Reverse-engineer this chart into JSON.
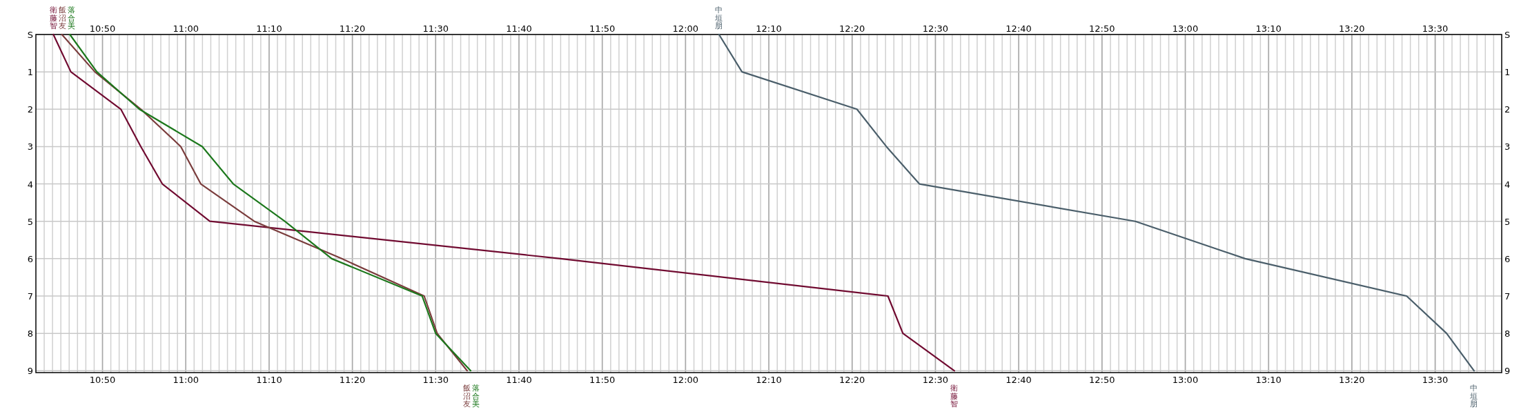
{
  "chart_data": {
    "type": "line",
    "grid": true,
    "marker": "none",
    "line_style": "solid",
    "xlim": [
      10.7,
      13.6333
    ],
    "x2lim": [
      10.7,
      13.6333
    ],
    "xticks": [
      {
        "value": 10.8333,
        "label": "10:50"
      },
      {
        "value": 11.0,
        "label": "11:00"
      },
      {
        "value": 11.1667,
        "label": "11:10"
      },
      {
        "value": 11.3333,
        "label": "11:20"
      },
      {
        "value": 11.5,
        "label": "11:30"
      },
      {
        "value": 11.6667,
        "label": "11:40"
      },
      {
        "value": 11.8333,
        "label": "11:50"
      },
      {
        "value": 12.0,
        "label": "12:00"
      },
      {
        "value": 12.1667,
        "label": "12:10"
      },
      {
        "value": 12.3333,
        "label": "12:20"
      },
      {
        "value": 12.5,
        "label": "12:30"
      },
      {
        "value": 12.6667,
        "label": "12:40"
      },
      {
        "value": 12.8333,
        "label": "12:50"
      },
      {
        "value": 13.0,
        "label": "13:00"
      },
      {
        "value": 13.1667,
        "label": "13:10"
      },
      {
        "value": 13.3333,
        "label": "13:20"
      },
      {
        "value": 13.5,
        "label": "13:30"
      }
    ],
    "x2ticks": [
      {
        "value": 10.8333,
        "label": "10:50"
      },
      {
        "value": 11.0,
        "label": "11:00"
      },
      {
        "value": 11.1667,
        "label": "11:10"
      },
      {
        "value": 11.3333,
        "label": "11:20"
      },
      {
        "value": 11.5,
        "label": "11:30"
      },
      {
        "value": 11.6667,
        "label": "11:40"
      },
      {
        "value": 11.8333,
        "label": "11:50"
      },
      {
        "value": 12.0,
        "label": "12:00"
      },
      {
        "value": 12.1667,
        "label": "12:10"
      },
      {
        "value": 12.3333,
        "label": "12:20"
      },
      {
        "value": 12.5,
        "label": "12:30"
      },
      {
        "value": 12.6667,
        "label": "12:40"
      },
      {
        "value": 12.8333,
        "label": "12:50"
      },
      {
        "value": 13.0,
        "label": "13:00"
      },
      {
        "value": 13.1667,
        "label": "13:10"
      },
      {
        "value": 13.3333,
        "label": "13:20"
      },
      {
        "value": 13.5,
        "label": "13:30"
      }
    ],
    "ylim": [
      9.05,
      0
    ],
    "y2lim": [
      9.05,
      0
    ],
    "yticks": [
      {
        "value": 0,
        "label": "S"
      },
      1,
      2,
      3,
      4,
      5,
      6,
      7,
      8,
      9
    ],
    "y2ticks": [
      {
        "value": 0,
        "label": "S"
      },
      1,
      2,
      3,
      4,
      5,
      6,
      7,
      8,
      9
    ],
    "series": [
      {
        "name": "衛藤智",
        "color": "#700a30",
        "x": [
          10.735,
          10.77,
          10.87,
          10.91,
          10.953,
          11.048,
          11.75,
          12.405,
          12.435,
          12.538
        ],
        "values": [
          0,
          1,
          2,
          3,
          4,
          5,
          6,
          7,
          8,
          9
        ]
      },
      {
        "name": "飯沼友",
        "color": "#7a3c3c",
        "x": [
          10.752,
          10.818,
          10.91,
          10.99,
          11.03,
          11.137,
          11.312,
          11.477,
          11.503,
          11.563
        ],
        "values": [
          0,
          1,
          2,
          3,
          4,
          5,
          6,
          7,
          8,
          9
        ]
      },
      {
        "name": "落合美",
        "color": "#1c781c",
        "x": [
          10.768,
          10.822,
          10.907,
          11.033,
          11.095,
          11.198,
          11.292,
          11.473,
          11.5,
          11.57
        ],
        "values": [
          0,
          1,
          2,
          3,
          4,
          5,
          6,
          7,
          8,
          9
        ]
      },
      {
        "name": "中垣朋",
        "color": "#4a5e6a",
        "x": [
          12.067,
          12.113,
          12.343,
          12.402,
          12.468,
          12.9,
          13.12,
          13.443,
          13.523,
          13.578
        ],
        "values": [
          0,
          1,
          2,
          3,
          4,
          5,
          6,
          7,
          8,
          9
        ]
      }
    ]
  }
}
